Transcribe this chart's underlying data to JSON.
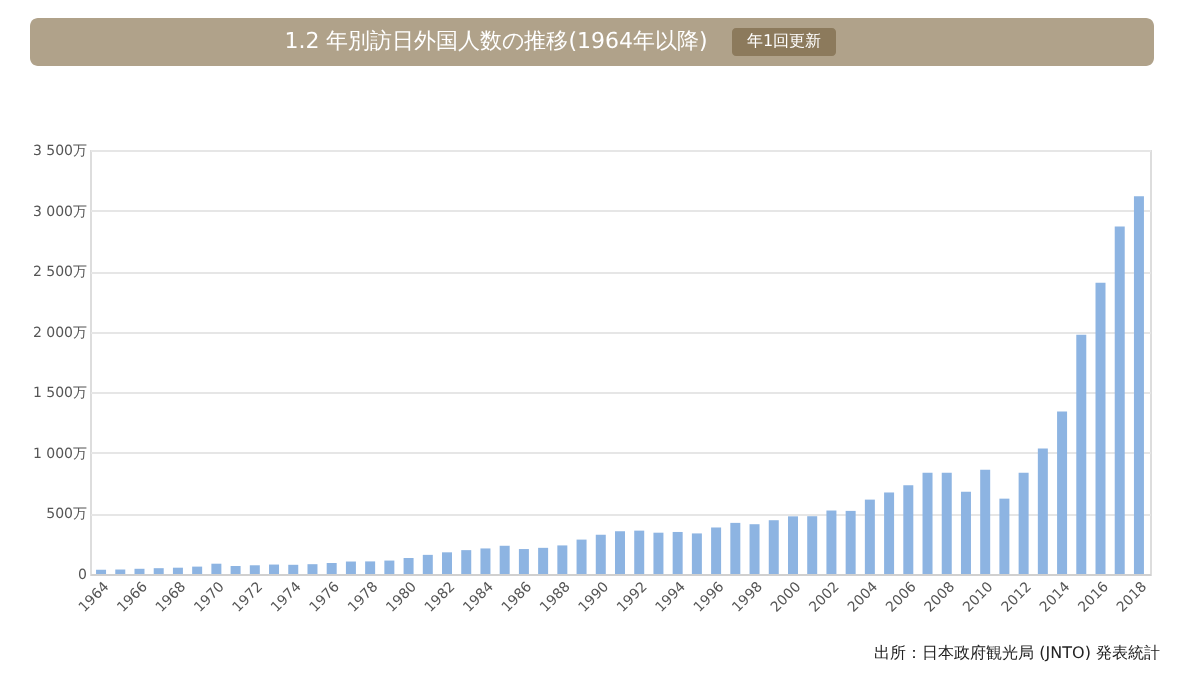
{
  "chart_data": {
    "type": "bar",
    "title": "1.2 年別訪日外国人数の推移(1964年以降)",
    "subtitle": "年1回更新",
    "categories": [
      "1964",
      null,
      "1966",
      null,
      "1968",
      null,
      "1970",
      null,
      "1972",
      null,
      "1974",
      null,
      "1976",
      null,
      "1978",
      null,
      "1980",
      null,
      "1982",
      null,
      "1984",
      null,
      "1986",
      null,
      "1988",
      null,
      "1990",
      null,
      "1992",
      null,
      "1994",
      null,
      "1996",
      null,
      "1998",
      null,
      "2000",
      null,
      "2002",
      null,
      "2004",
      null,
      "2006",
      null,
      "2008",
      null,
      "2010",
      null,
      "2012",
      null,
      "2014",
      null,
      "2016",
      null,
      "2018"
    ],
    "values": [
      35,
      37,
      43,
      48,
      52,
      61,
      85,
      66,
      72,
      78,
      76,
      81,
      91,
      103,
      104,
      111,
      132,
      158,
      179,
      197,
      211,
      233,
      206,
      216,
      236,
      284,
      324,
      353,
      358,
      341,
      347,
      335,
      384,
      422,
      411,
      444,
      476,
      477,
      524,
      521,
      614,
      673,
      733,
      835,
      835,
      679,
      861,
      622,
      836,
      1036,
      1341,
      1974,
      2404,
      2869,
      3119
    ],
    "color": "#8db4e2",
    "ylim": [
      0,
      3500
    ],
    "yticks": [
      0,
      {
        "value": 500,
        "label": "500万"
      },
      {
        "value": 1000,
        "label": "1 000万"
      },
      {
        "value": 1500,
        "label": "1 500万"
      },
      {
        "value": 2000,
        "label": "2 000万"
      },
      {
        "value": 2500,
        "label": "2 500万"
      },
      {
        "value": 3000,
        "label": "3 000万"
      },
      {
        "value": 3500,
        "label": "3 500万"
      }
    ],
    "grid": "y",
    "annotations": [
      "出所：日本政府観光局 (JNTO) 発表統計"
    ]
  }
}
